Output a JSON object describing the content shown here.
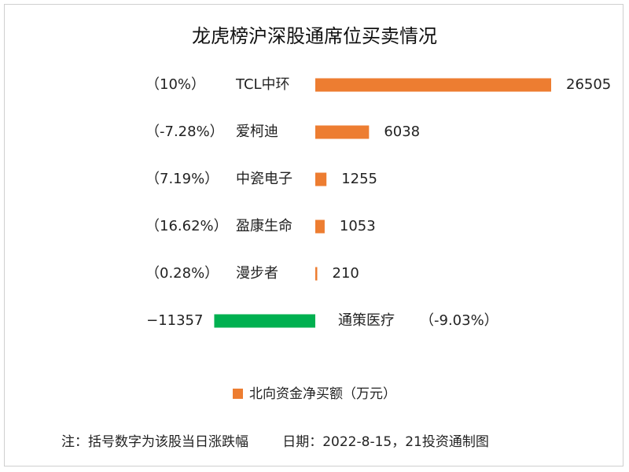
{
  "chart_data": {
    "type": "bar",
    "orientation": "horizontal",
    "title": "龙虎榜沪深股通席位买卖情况",
    "categories": [
      "TCL中环",
      "爱柯迪",
      "中瓷电子",
      "盈康生命",
      "漫步者",
      "通策医疗"
    ],
    "changes": [
      "（10%）",
      "（-7.28%）",
      "（7.19%）",
      "（16.62%）",
      "（0.28%）",
      "（-9.03%）"
    ],
    "series": [
      {
        "name": "北向资金净买额（万元）",
        "values": [
          26505,
          6038,
          1255,
          1053,
          210,
          -11357
        ]
      }
    ],
    "colors": {
      "positive": "#ED7D31",
      "negative": "#00B050"
    },
    "legend_position": "bottom",
    "grid": false
  },
  "footer": {
    "note": "注：括号数字为该股当日涨跌幅",
    "date": "日期：2022-8-15，21投资通制图"
  }
}
